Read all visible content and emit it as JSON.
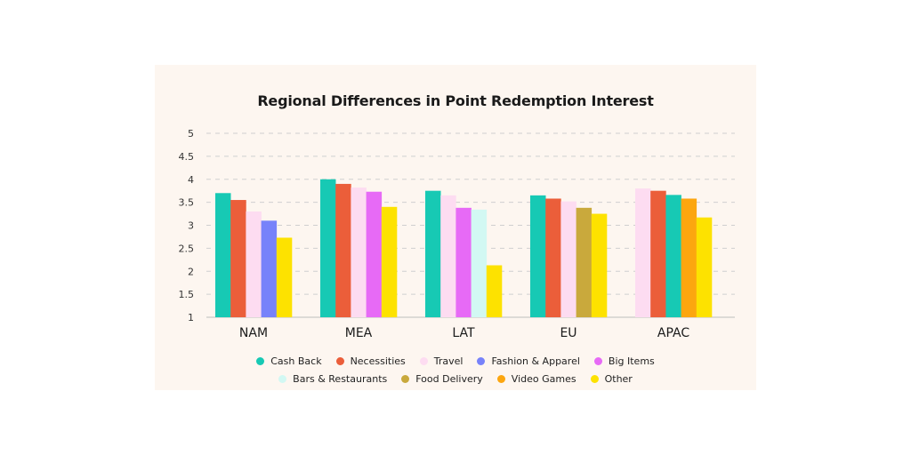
{
  "chart_data": {
    "type": "bar",
    "title": "Regional Differences in Point Redemption Interest",
    "categories": [
      "NAM",
      "MEA",
      "LAT",
      "EU",
      "APAC"
    ],
    "ylim": [
      1,
      5
    ],
    "yticks": [
      "1",
      "1.5",
      "2",
      "2.5",
      "3",
      "3.5",
      "4",
      "4.5",
      "5"
    ],
    "grid": true,
    "legend_position": "bottom",
    "legend": [
      {
        "name": "Cash Back",
        "color": "#17c9b4"
      },
      {
        "name": "Necessities",
        "color": "#eb5e3a"
      },
      {
        "name": "Travel",
        "color": "#fddcf1"
      },
      {
        "name": "Fashion & Apparel",
        "color": "#7782fa"
      },
      {
        "name": "Big Items",
        "color": "#e76af6"
      },
      {
        "name": "Bars & Restaurants",
        "color": "#d2f8f3"
      },
      {
        "name": "Food Delivery",
        "color": "#c9a93c"
      },
      {
        "name": "Video Games",
        "color": "#fca60f"
      },
      {
        "name": "Other",
        "color": "#fde200"
      }
    ],
    "groups": [
      {
        "category": "NAM",
        "bars": [
          {
            "series": "Cash Back",
            "value": 3.7
          },
          {
            "series": "Necessities",
            "value": 3.55
          },
          {
            "series": "Travel",
            "value": 3.3
          },
          {
            "series": "Fashion & Apparel",
            "value": 3.1
          },
          {
            "series": "Other",
            "value": 2.73
          }
        ]
      },
      {
        "category": "MEA",
        "bars": [
          {
            "series": "Cash Back",
            "value": 4.0
          },
          {
            "series": "Necessities",
            "value": 3.9
          },
          {
            "series": "Travel",
            "value": 3.82
          },
          {
            "series": "Big Items",
            "value": 3.73
          },
          {
            "series": "Other",
            "value": 3.4
          }
        ]
      },
      {
        "category": "LAT",
        "bars": [
          {
            "series": "Cash Back",
            "value": 3.75
          },
          {
            "series": "Travel",
            "value": 3.65
          },
          {
            "series": "Big Items",
            "value": 3.38
          },
          {
            "series": "Bars & Restaurants",
            "value": 3.34
          },
          {
            "series": "Other",
            "value": 2.13
          }
        ]
      },
      {
        "category": "EU",
        "bars": [
          {
            "series": "Cash Back",
            "value": 3.65
          },
          {
            "series": "Necessities",
            "value": 3.58
          },
          {
            "series": "Travel",
            "value": 3.52
          },
          {
            "series": "Food Delivery",
            "value": 3.38
          },
          {
            "series": "Other",
            "value": 3.25
          }
        ]
      },
      {
        "category": "APAC",
        "bars": [
          {
            "series": "Travel",
            "value": 3.8
          },
          {
            "series": "Necessities",
            "value": 3.75
          },
          {
            "series": "Cash Back",
            "value": 3.66
          },
          {
            "series": "Video Games",
            "value": 3.58
          },
          {
            "series": "Other",
            "value": 3.17
          }
        ]
      }
    ]
  }
}
